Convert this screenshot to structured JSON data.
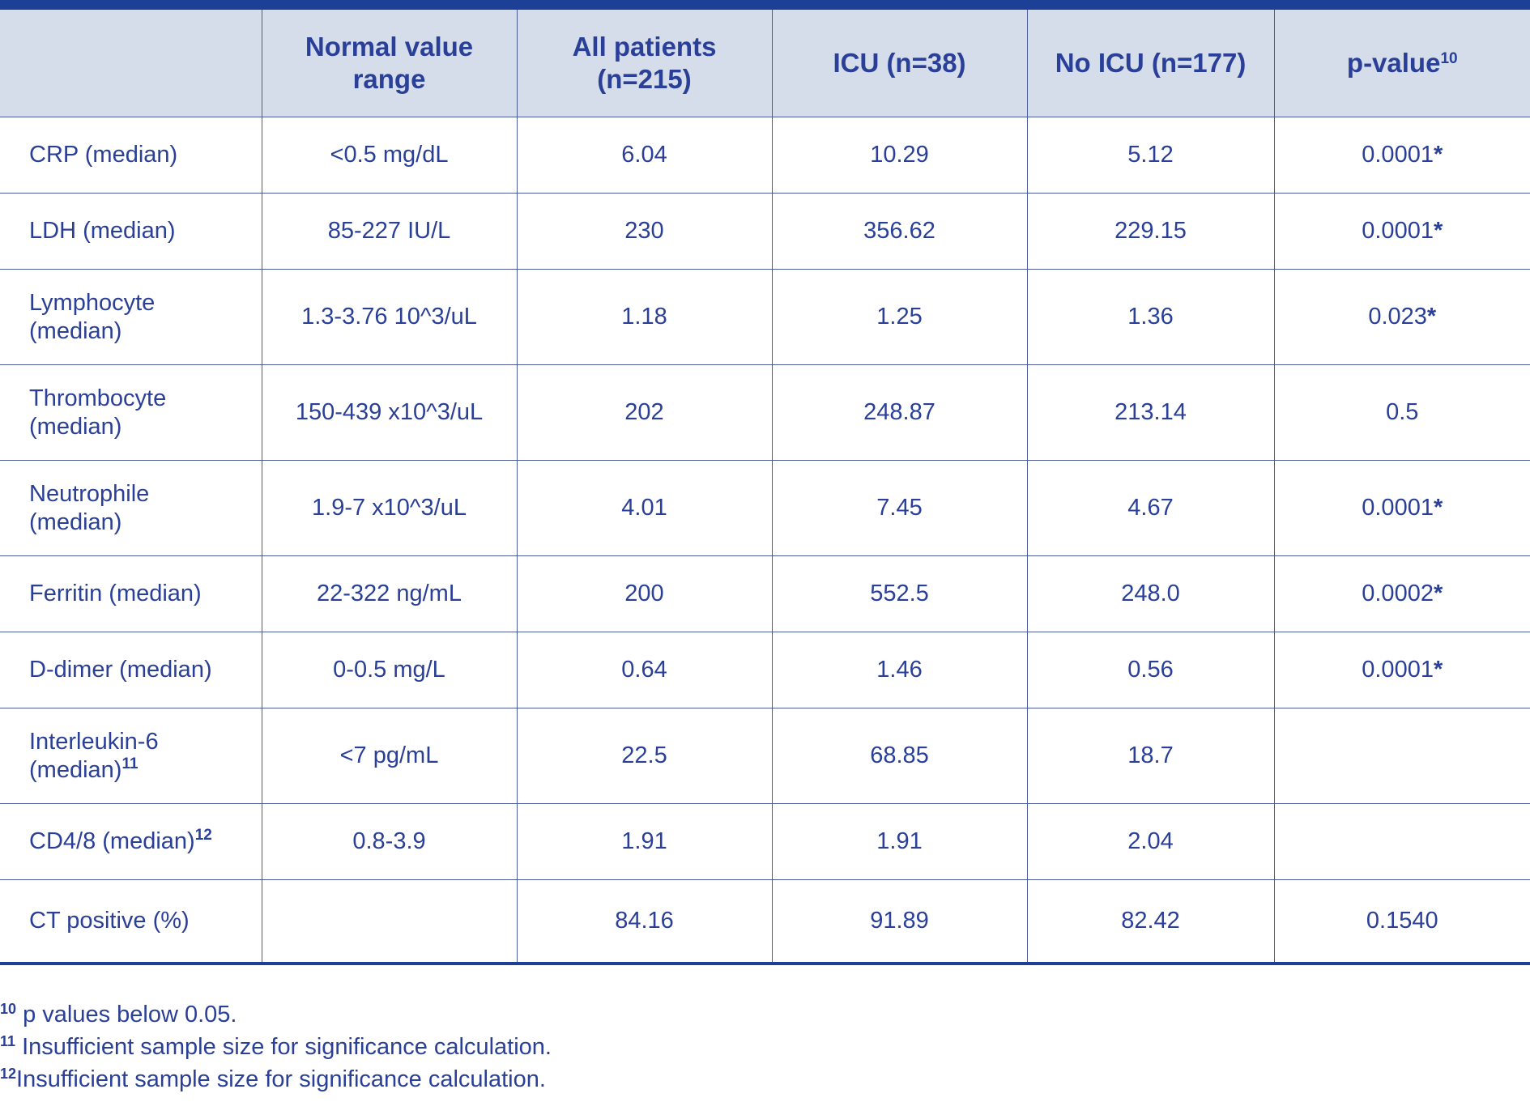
{
  "header": [
    {
      "text": "",
      "sup": ""
    },
    {
      "text": "Normal value range",
      "sup": ""
    },
    {
      "text": "All patients (n=215)",
      "sup": ""
    },
    {
      "text": "ICU (n=38)",
      "sup": ""
    },
    {
      "text": "No ICU (n=177)",
      "sup": ""
    },
    {
      "text": "p-value",
      "sup": "10"
    }
  ],
  "rows": [
    {
      "label": "CRP (median)",
      "label_sup": "",
      "range": "<0.5 mg/dL",
      "all": "6.04",
      "icu": "10.29",
      "no_icu": "5.12",
      "p": "0.0001",
      "star": "*"
    },
    {
      "label": "LDH (median)",
      "label_sup": "",
      "range": "85-227 IU/L",
      "all": "230",
      "icu": "356.62",
      "no_icu": "229.15",
      "p": "0.0001",
      "star": "*"
    },
    {
      "label": "Lymphocyte (median)",
      "label_sup": "",
      "range": "1.3-3.76 10^3/uL",
      "all": "1.18",
      "icu": "1.25",
      "no_icu": "1.36",
      "p": "0.023",
      "star": "*"
    },
    {
      "label": "Thrombocyte (median)",
      "label_sup": "",
      "range": "150-439 x10^3/uL",
      "all": "202",
      "icu": "248.87",
      "no_icu": "213.14",
      "p": "0.5",
      "star": ""
    },
    {
      "label": "Neutrophile (median)",
      "label_sup": "",
      "range": "1.9-7 x10^3/uL",
      "all": "4.01",
      "icu": "7.45",
      "no_icu": "4.67",
      "p": "0.0001",
      "star": "*"
    },
    {
      "label": "Ferritin (median)",
      "label_sup": "",
      "range": "22-322 ng/mL",
      "all": "200",
      "icu": "552.5",
      "no_icu": "248.0",
      "p": "0.0002",
      "star": "*"
    },
    {
      "label": "D-dimer (median)",
      "label_sup": "",
      "range": "0-0.5 mg/L",
      "all": "0.64",
      "icu": "1.46",
      "no_icu": "0.56",
      "p": "0.0001",
      "star": "*"
    },
    {
      "label": "Interleukin-6 (median)",
      "label_sup": "11",
      "range": "<7 pg/mL",
      "all": "22.5",
      "icu": "68.85",
      "no_icu": "18.7",
      "p": "",
      "star": ""
    },
    {
      "label": "CD4/8 (median)",
      "label_sup": "12",
      "range": "0.8-3.9",
      "all": "1.91",
      "icu": "1.91",
      "no_icu": "2.04",
      "p": "",
      "star": ""
    },
    {
      "label": "CT positive (%)",
      "label_sup": "",
      "range": "",
      "all": "84.16",
      "icu": "91.89",
      "no_icu": "82.42",
      "p": "0.1540",
      "star": ""
    }
  ],
  "footnotes": [
    {
      "num": "10",
      "text": " p values below 0.05."
    },
    {
      "num": "11",
      "text": " Insufficient sample size for significance calculation."
    },
    {
      "num": "12",
      "text": "Insufficient sample size for significance calculation."
    }
  ],
  "colors": {
    "text": "#2a3f97",
    "header_bg": "#d5dcea",
    "rule": "#1e3f96"
  }
}
